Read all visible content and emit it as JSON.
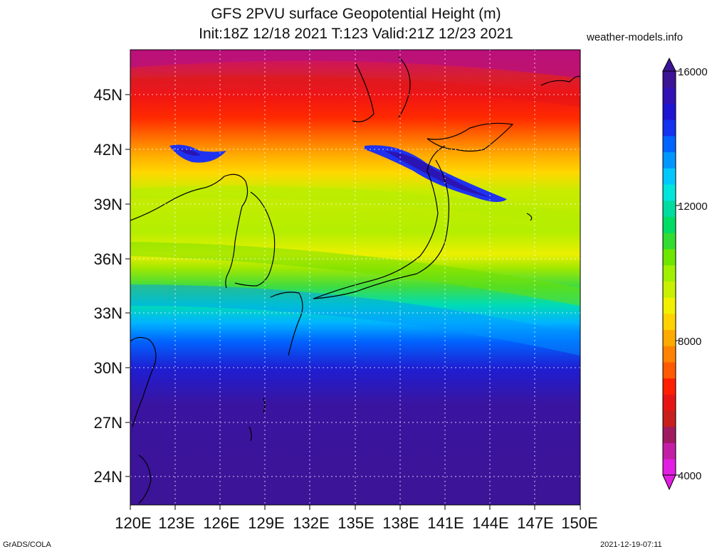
{
  "title_line1": "GFS 2PVU surface Geopotential Height (m)",
  "title_line2": "Init:18Z 12/18 2021 T:123 Valid:21Z 12/23 2021",
  "site": "weather-models.info",
  "footer_left": "GrADS/COLA",
  "footer_right": "2021-12-19-07:11",
  "lat_labels": [
    "45N",
    "42N",
    "39N",
    "36N",
    "33N",
    "30N",
    "27N",
    "24N"
  ],
  "lon_labels": [
    "120E",
    "123E",
    "126E",
    "129E",
    "132E",
    "135E",
    "138E",
    "141E",
    "144E",
    "147E",
    "150E"
  ],
  "colorbar_labels": [
    "16000",
    "12000",
    "8000",
    "4000"
  ],
  "colorbar_colors": [
    "#e11ee1",
    "#c41da6",
    "#a01a60",
    "#c81e1e",
    "#e61414",
    "#ff1e00",
    "#ff5a00",
    "#ff8200",
    "#ffaa00",
    "#ffd200",
    "#f0f000",
    "#c8f000",
    "#a0f000",
    "#6ee600",
    "#32dc32",
    "#00dc64",
    "#00dca0",
    "#00e6dc",
    "#00c8ff",
    "#0096ff",
    "#0064ff",
    "#1432f0",
    "#1e14d2",
    "#3212b4",
    "#3c1496"
  ]
}
